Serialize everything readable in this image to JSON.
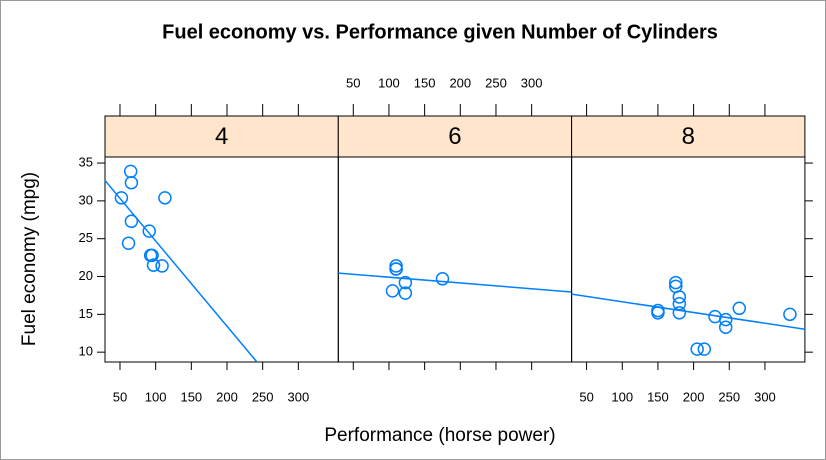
{
  "chart_data": {
    "type": "scatter",
    "title": "Fuel economy vs. Performance given Number of Cylinders",
    "xlabel": "Performance (horse power)",
    "ylabel": "Fuel economy (mpg)",
    "color": "#0080ff",
    "strip_color": "#ffe5cc",
    "xlim": [
      29,
      356
    ],
    "ylim": [
      8.7,
      35.8
    ],
    "xticks": [
      50,
      100,
      150,
      200,
      250,
      300
    ],
    "yticks": [
      10,
      15,
      20,
      25,
      30,
      35
    ],
    "panels": [
      {
        "name": "4",
        "x": [
          93,
          62,
          95,
          66,
          52,
          65,
          97,
          66,
          91,
          113,
          109
        ],
        "y": [
          22.8,
          24.4,
          22.8,
          32.4,
          30.4,
          33.9,
          21.5,
          27.3,
          26.0,
          30.4,
          21.4
        ],
        "fit": {
          "x": [
            29,
            242
          ],
          "y": [
            32.7,
            8.7
          ]
        }
      },
      {
        "name": "6",
        "x": [
          110,
          110,
          110,
          175,
          105,
          123,
          123
        ],
        "y": [
          21.0,
          21.0,
          21.4,
          19.7,
          18.1,
          19.2,
          17.8
        ],
        "fit": {
          "x": [
            29,
            356
          ],
          "y": [
            20.45,
            17.96
          ]
        }
      },
      {
        "name": "8",
        "x": [
          175,
          245,
          180,
          180,
          180,
          205,
          215,
          230,
          150,
          150,
          245,
          175,
          264,
          335
        ],
        "y": [
          18.7,
          14.3,
          16.4,
          17.3,
          15.2,
          10.4,
          10.4,
          14.7,
          15.5,
          15.2,
          13.3,
          19.2,
          15.8,
          15.0
        ],
        "fit": {
          "x": [
            29,
            356
          ],
          "y": [
            17.67,
            13.03
          ]
        }
      }
    ]
  }
}
